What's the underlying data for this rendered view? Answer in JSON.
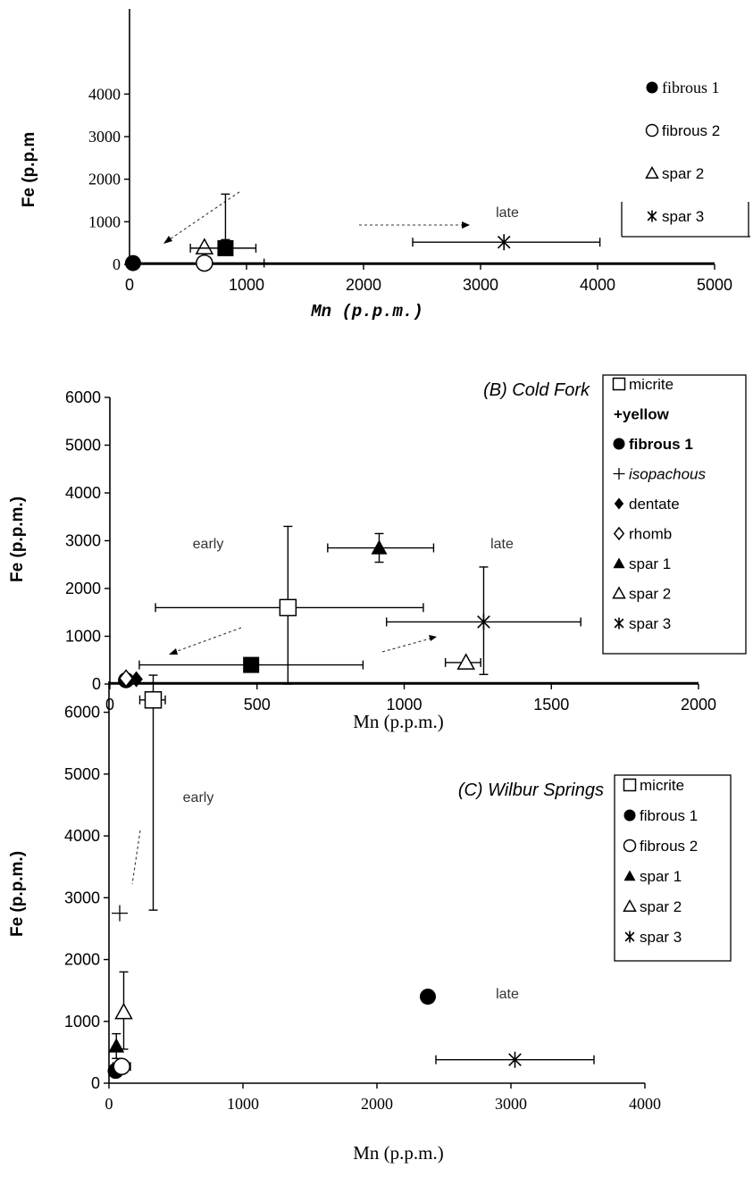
{
  "chart_data": [
    {
      "id": "A",
      "type": "scatter",
      "title": "",
      "xlabel": "Mn (p.p.m.)",
      "ylabel": "Fe (p.p.m",
      "xlim": [
        0,
        5000
      ],
      "ylim": [
        0,
        6000
      ],
      "xticks": [
        0,
        1000,
        2000,
        3000,
        4000,
        5000
      ],
      "yticks": [
        0,
        1000,
        2000,
        3000,
        4000
      ],
      "legend": {
        "position": "right",
        "entries": [
          {
            "symbol": "circle-filled",
            "label": "fibrous 1"
          },
          {
            "symbol": "circle-open",
            "label": "fibrous 2"
          },
          {
            "symbol": "triangle-open",
            "label": "spar 2"
          },
          {
            "symbol": "asterisk",
            "label": "spar 3"
          }
        ]
      },
      "annotations": [
        {
          "text": "late",
          "x": 3100,
          "y": 1250
        }
      ],
      "series": [
        {
          "name": "fibrous 1",
          "marker": "circle-filled",
          "x": 30,
          "y": 30,
          "xerr": [
            30,
            1150
          ],
          "yerr": null
        },
        {
          "name": "fibrous 2",
          "marker": "circle-open",
          "x": 640,
          "y": 30,
          "xerr": null,
          "yerr": null
        },
        {
          "name": "spar 2",
          "marker": "triangle-open",
          "x": 640,
          "y": 400,
          "xerr": null,
          "yerr": null
        },
        {
          "name": "",
          "marker": "square-filled",
          "x": 820,
          "y": 380,
          "xerr": [
            520,
            1080
          ],
          "yerr": [
            580,
            1650
          ]
        },
        {
          "name": "spar 3",
          "marker": "asterisk",
          "x": 3200,
          "y": 520,
          "xerr": [
            2420,
            4020
          ],
          "yerr": null
        }
      ]
    },
    {
      "id": "B",
      "type": "scatter",
      "title": "(B) Cold Fork",
      "xlabel": "Mn (p.p.m.)",
      "ylabel": "Fe (p.p.m.)",
      "xlim": [
        0,
        2000
      ],
      "ylim": [
        0,
        6000
      ],
      "xticks": [
        0,
        500,
        1000,
        1500,
        2000
      ],
      "yticks": [
        0,
        1000,
        2000,
        3000,
        4000,
        5000,
        6000
      ],
      "legend": {
        "position": "right",
        "entries": [
          {
            "symbol": "square-open",
            "label": "micrite"
          },
          {
            "symbol": "plus-bold",
            "label": "+yellow"
          },
          {
            "symbol": "circle-filled",
            "label": "fibrous 1"
          },
          {
            "symbol": "plus",
            "label": "isopachous"
          },
          {
            "symbol": "diamond-filled",
            "label": "dentate"
          },
          {
            "symbol": "diamond-open",
            "label": "rhomb"
          },
          {
            "symbol": "triangle-filled",
            "label": "spar 1"
          },
          {
            "symbol": "triangle-open",
            "label": "spar 2"
          },
          {
            "symbol": "asterisk",
            "label": "spar 3"
          }
        ]
      },
      "annotations": [
        {
          "text": "early",
          "x": 380,
          "y": 2900
        },
        {
          "text": "late",
          "x": 1320,
          "y": 2900
        }
      ],
      "series": [
        {
          "name": "micrite",
          "marker": "square-open",
          "x": 605,
          "y": 1600,
          "xerr": [
            155,
            1065
          ],
          "yerr": [
            0,
            3300
          ]
        },
        {
          "name": "fibrous 1",
          "marker": "circle-filled",
          "x": 55,
          "y": 80,
          "xerr": null,
          "yerr": null
        },
        {
          "name": "dentate",
          "marker": "diamond-filled",
          "x": 90,
          "y": 100,
          "xerr": null,
          "yerr": null
        },
        {
          "name": "rhomb",
          "marker": "diamond-open",
          "x": 55,
          "y": 120,
          "xerr": null,
          "yerr": null
        },
        {
          "name": "",
          "marker": "square-filled",
          "x": 480,
          "y": 400,
          "xerr": [
            100,
            860
          ],
          "yerr": null
        },
        {
          "name": "spar 1",
          "marker": "triangle-filled",
          "x": 915,
          "y": 2850,
          "xerr": [
            740,
            1100
          ],
          "yerr": [
            2550,
            3150
          ]
        },
        {
          "name": "spar 2",
          "marker": "triangle-open",
          "x": 1210,
          "y": 450,
          "xerr": [
            1140,
            1260
          ],
          "yerr": null
        },
        {
          "name": "spar 3",
          "marker": "asterisk",
          "x": 1270,
          "y": 1300,
          "xerr": [
            940,
            1600
          ],
          "yerr": [
            200,
            2450
          ]
        }
      ]
    },
    {
      "id": "C",
      "type": "scatter",
      "title": "(C) Wilbur Springs",
      "xlabel": "Mn (p.p.m.)",
      "ylabel": "Fe (p.p.m.)",
      "xlim": [
        0,
        4000
      ],
      "ylim": [
        0,
        6500
      ],
      "xticks": [
        0,
        1000,
        2000,
        3000,
        4000
      ],
      "yticks": [
        0,
        1000,
        2000,
        3000,
        4000,
        5000,
        6000
      ],
      "legend": {
        "position": "right",
        "entries": [
          {
            "symbol": "square-open",
            "label": "micrite"
          },
          {
            "symbol": "circle-filled",
            "label": "fibrous 1"
          },
          {
            "symbol": "circle-open",
            "label": "fibrous 2"
          },
          {
            "symbol": "triangle-filled",
            "label": "spar 1"
          },
          {
            "symbol": "triangle-open",
            "label": "spar 2"
          },
          {
            "symbol": "asterisk",
            "label": "spar 3"
          }
        ]
      },
      "annotations": [
        {
          "text": "early",
          "x": 460,
          "y": 5850
        },
        {
          "text": "late",
          "x": 2620,
          "y": 1400
        }
      ],
      "series": [
        {
          "name": "micrite",
          "marker": "square-open",
          "x": 330,
          "y": 6200,
          "xerr": [
            230,
            420
          ],
          "yerr": [
            2800,
            6600
          ]
        },
        {
          "name": "fibrous 1",
          "marker": "circle-filled",
          "x": 50,
          "y": 200,
          "xerr": null,
          "yerr": null
        },
        {
          "name": "fibrous 2",
          "marker": "circle-open",
          "x": 95,
          "y": 270,
          "xerr": [
            30,
            160
          ],
          "yerr": null
        },
        {
          "name": "spar 1",
          "marker": "triangle-filled",
          "x": 55,
          "y": 600,
          "xerr": null,
          "yerr": [
            400,
            800
          ]
        },
        {
          "name": "spar 2",
          "marker": "triangle-open",
          "x": 110,
          "y": 1150,
          "xerr": null,
          "yerr": [
            550,
            1800
          ]
        },
        {
          "name": "spar 3",
          "marker": "asterisk",
          "x": 3030,
          "y": 380,
          "xerr": [
            2440,
            3620
          ],
          "yerr": null
        },
        {
          "name": "",
          "marker": "circle-filled",
          "x": 2380,
          "y": 1400,
          "xerr": null,
          "yerr": null
        },
        {
          "name": "",
          "marker": "plus",
          "x": 80,
          "y": 2750,
          "xerr": null,
          "yerr": null
        }
      ]
    }
  ]
}
